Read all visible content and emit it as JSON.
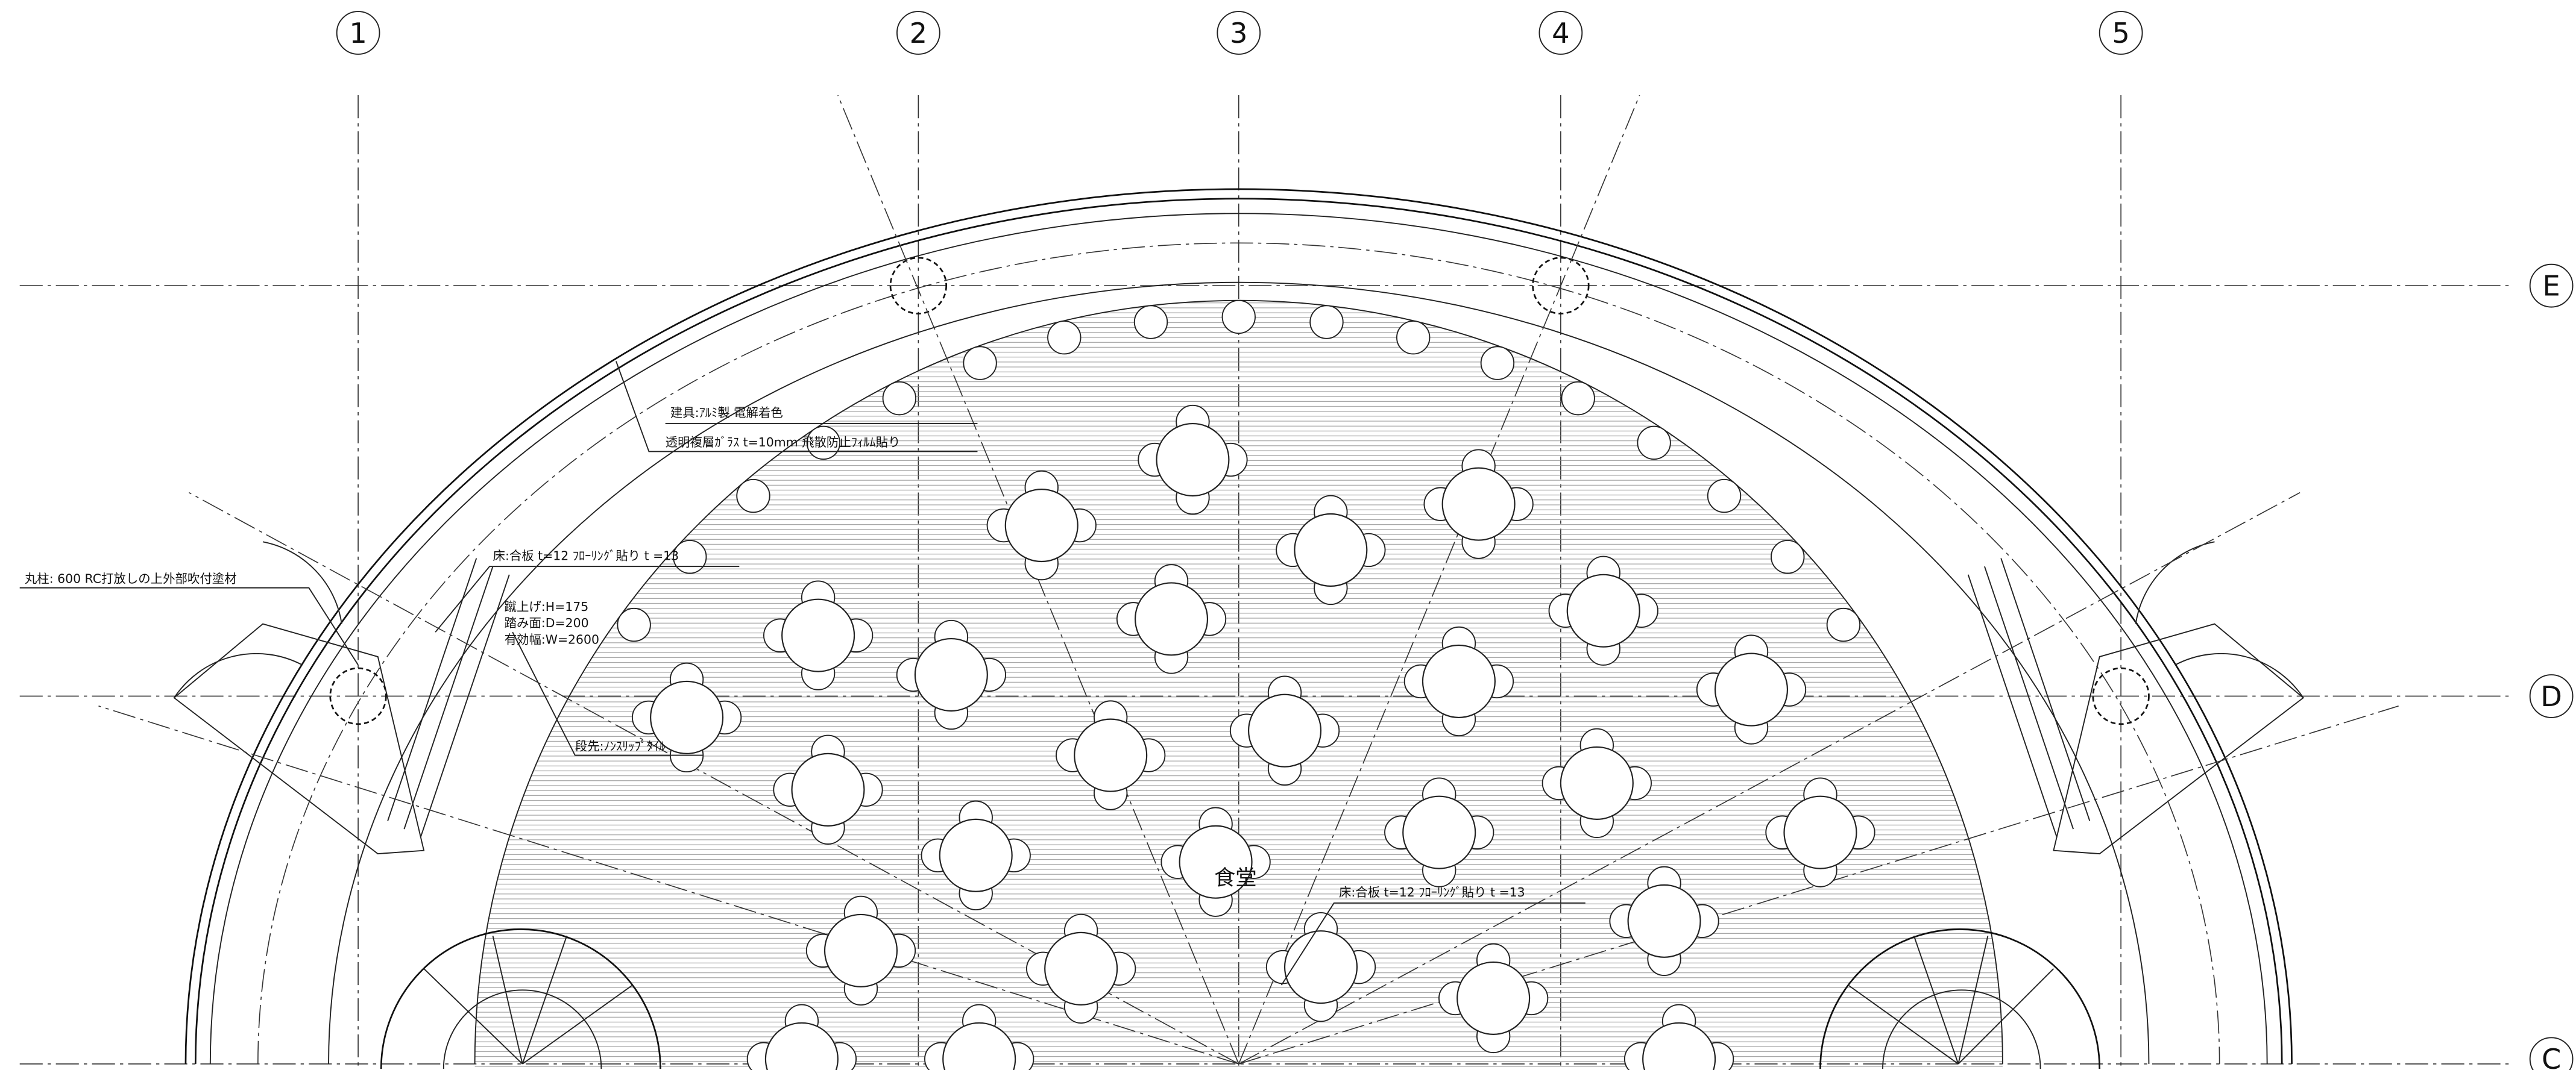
{
  "grid": {
    "columns": [
      "1",
      "2",
      "3",
      "4",
      "5"
    ],
    "rows": [
      "E",
      "D",
      "C"
    ]
  },
  "annotations": {
    "fitting": "建具:ｱﾙﾐ製 電解着色",
    "glass": "透明複層ｶﾞﾗｽ t=10mm 飛散防止ﾌｨﾙﾑ貼り",
    "floor_upper": "床:合板 t=12 ﾌﾛｰﾘﾝｸﾞ貼り t =13",
    "column": "丸柱: 600 RC打放しの上外部吹付塗材",
    "riser": "蹴上げ:H=175",
    "tread": "踏み面:D=200",
    "width": "有効幅:W=2600",
    "nosing": "段先:ﾉﾝｽﾘｯﾌﾟﾀｲﾙ",
    "room": "食堂",
    "floor_lower": "床:合板 t=12 ﾌﾛｰﾘﾝｸﾞ貼り t =13"
  }
}
